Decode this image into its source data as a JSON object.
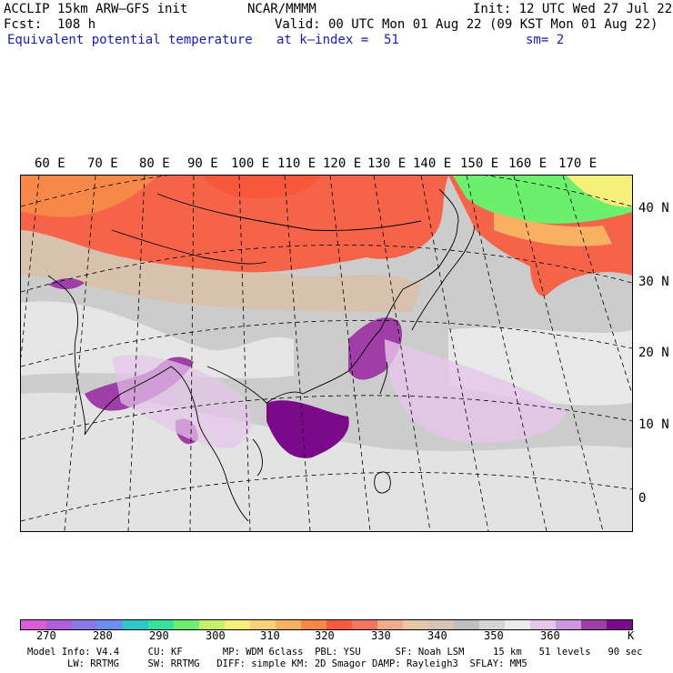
{
  "header": {
    "model": "ACCLIP 15km ARW–GFS init",
    "org": "NCAR/MMMM",
    "init": "Init: 12 UTC Wed 27 Jul 22",
    "fcst": "Fcst:  108 h",
    "valid": "Valid: 00 UTC Mon 01 Aug 22 (09 KST Mon 01 Aug 22)",
    "field": "Equivalent potential temperature",
    "level": "at k–index =  51",
    "sm": "sm= 2"
  },
  "map": {
    "lon_labels": [
      "60 E",
      "70 E",
      "80 E",
      "90 E",
      "100 E",
      "110 E",
      "120 E",
      "130 E",
      "140 E",
      "150 E",
      "160 E",
      "170 E"
    ],
    "lat_labels": [
      "40 N",
      "30 N",
      "20 N",
      "10 N",
      "0"
    ]
  },
  "colorbar": {
    "unit": "K",
    "colors": [
      "#d85fd8",
      "#b05fdc",
      "#8a78e8",
      "#6a8ef4",
      "#2ec8c8",
      "#35e29c",
      "#6cef6c",
      "#c6f06a",
      "#f6ef7a",
      "#f9d27a",
      "#f8b162",
      "#f88848",
      "#f75a3e",
      "#f57660",
      "#f0ab8c",
      "#e6c7a8",
      "#d5c4b6",
      "#bfbfbf",
      "#d6d6d6",
      "#ececec",
      "#e6c6ea",
      "#cf97e0",
      "#a03ea8",
      "#7a0a8a"
    ],
    "labels": [
      "270",
      "280",
      "290",
      "300",
      "310",
      "320",
      "330",
      "340",
      "350",
      "360"
    ]
  },
  "footer": {
    "line1": "Model Info: V4.4     CU: KF       MP: WDM 6class  PBL: YSU      SF: Noah LSM     15 km   51 levels   90 sec",
    "line2": "LW: RRTMG     SW: RRTMG   DIFF: simple KM: 2D Smagor DAMP: Rayleigh3  SFLAY: MM5"
  }
}
